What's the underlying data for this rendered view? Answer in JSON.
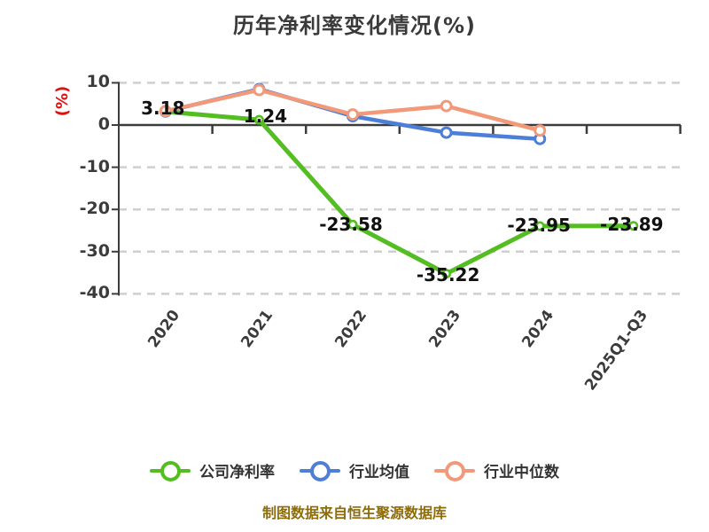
{
  "title": "历年净利率变化情况(%)",
  "footer": "制图数据来自恒生聚源数据库",
  "colors": {
    "background": "#ffffff",
    "axis": "#3c3c3c",
    "grid": "#cfcfcf",
    "tick_label": "#3b3b3b",
    "data_label": "#111111",
    "ylabel_red": "#e01111",
    "footer_gold": "#8e6c0c",
    "series_company_green": "#53bd22",
    "series_avg_blue": "#4d7ed8",
    "series_median_orange": "#f2997a"
  },
  "chart_data": {
    "type": "line",
    "title": "历年净利率变化情况(%)",
    "xlabel": "",
    "ylabel": "(%)",
    "categories": [
      "2020",
      "2021",
      "2022",
      "2023",
      "2024",
      "2025Q1-Q3"
    ],
    "yticks": [
      10,
      0,
      -10,
      -20,
      -30,
      -40
    ],
    "ylim": [
      -40,
      10
    ],
    "grid": "horizontal-dashed",
    "legend_position": "bottom",
    "series": [
      {
        "name": "公司净利率",
        "color": "#53bd22",
        "values": [
          3.18,
          1.24,
          -23.58,
          -35.22,
          -23.95,
          -23.89
        ],
        "point_labels": [
          "3.18",
          "1.24",
          "-23.58",
          "-35.22",
          "-23.95",
          "-23.89"
        ]
      },
      {
        "name": "行业均值",
        "color": "#4d7ed8",
        "values": [
          3.2,
          8.5,
          2.1,
          -1.8,
          -3.3,
          null
        ],
        "point_labels": []
      },
      {
        "name": "行业中位数",
        "color": "#f2997a",
        "values": [
          3.3,
          8.3,
          2.5,
          4.5,
          -1.3,
          null
        ],
        "point_labels": []
      }
    ]
  }
}
